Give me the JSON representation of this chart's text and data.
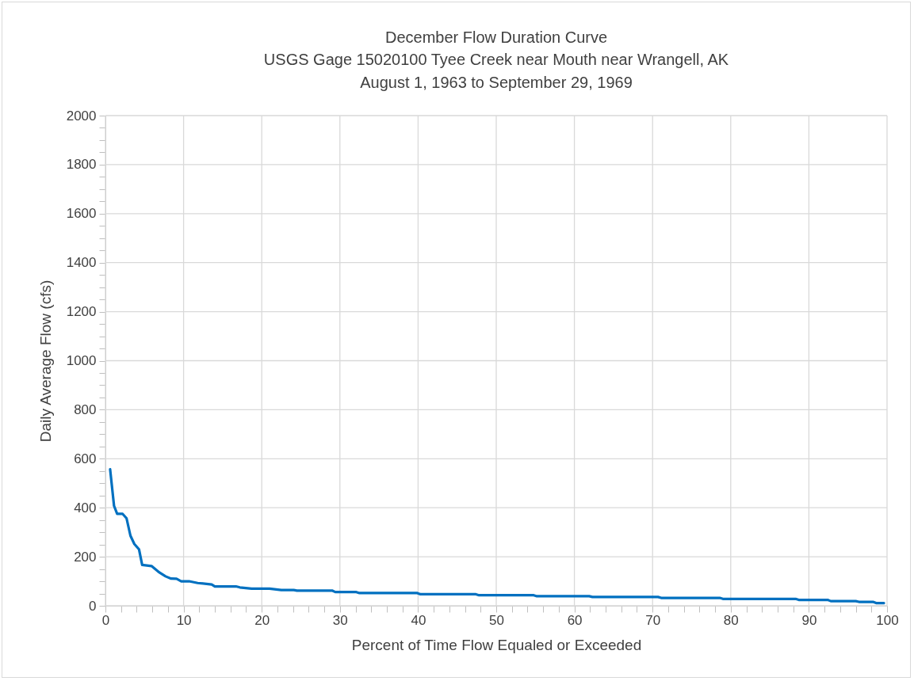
{
  "chart_data": {
    "type": "line",
    "title": "December Flow Duration Curve",
    "subtitle": "USGS Gage 15020100 Tyee Creek near Mouth near Wrangell, AK\nAugust 1, 1963 to September 29, 1969",
    "xlabel": "Percent of Time Flow Equaled or Exceeded",
    "ylabel": "Daily Average Flow (cfs)",
    "x": [
      0.6,
      1.1,
      1.5,
      2.2,
      2.7,
      3.2,
      3.7,
      4.3,
      4.7,
      5.9,
      6.9,
      7.7,
      8.4,
      9.1,
      9.7,
      10.7,
      11.8,
      13.6,
      14.0,
      16.7,
      17.2,
      18.7,
      21.0,
      22.5,
      24.1,
      24.5,
      29.0,
      29.4,
      32.1,
      32.5,
      39.9,
      40.3,
      47.4,
      47.8,
      54.8,
      55.2,
      61.9,
      62.3,
      70.7,
      71.1,
      78.6,
      79.0,
      88.3,
      88.7,
      92.4,
      92.8,
      96.0,
      96.4,
      98.2,
      98.6,
      99.6
    ],
    "series": [
      {
        "color": "#0070c0",
        "values": [
          557,
          408,
          375,
          375,
          357,
          286,
          252,
          230,
          167,
          162,
          136,
          120,
          111,
          110,
          100,
          100,
          93,
          87,
          79,
          79,
          75,
          70,
          70,
          64,
          64,
          62,
          62,
          56,
          56,
          52,
          52,
          47,
          47,
          43,
          43,
          39,
          39,
          36,
          36,
          32,
          32,
          28,
          28,
          24,
          24,
          19,
          19,
          16,
          16,
          11,
          11
        ]
      }
    ],
    "xlim": [
      0,
      100
    ],
    "ylim": [
      0,
      2000
    ],
    "xticks": [
      0,
      {
        "value": 2,
        "label": null
      },
      {
        "value": 4,
        "label": null
      },
      {
        "value": 6,
        "label": null
      },
      {
        "value": 8,
        "label": null
      },
      10,
      {
        "value": 12,
        "label": null
      },
      {
        "value": 14,
        "label": null
      },
      {
        "value": 16,
        "label": null
      },
      {
        "value": 18,
        "label": null
      },
      20,
      {
        "value": 22,
        "label": null
      },
      {
        "value": 24,
        "label": null
      },
      {
        "value": 26,
        "label": null
      },
      {
        "value": 28,
        "label": null
      },
      30,
      {
        "value": 32,
        "label": null
      },
      {
        "value": 34,
        "label": null
      },
      {
        "value": 36,
        "label": null
      },
      {
        "value": 38,
        "label": null
      },
      40,
      {
        "value": 42,
        "label": null
      },
      {
        "value": 44,
        "label": null
      },
      {
        "value": 46,
        "label": null
      },
      {
        "value": 48,
        "label": null
      },
      50,
      {
        "value": 52,
        "label": null
      },
      {
        "value": 54,
        "label": null
      },
      {
        "value": 56,
        "label": null
      },
      {
        "value": 58,
        "label": null
      },
      60,
      {
        "value": 62,
        "label": null
      },
      {
        "value": 64,
        "label": null
      },
      {
        "value": 66,
        "label": null
      },
      {
        "value": 68,
        "label": null
      },
      70,
      {
        "value": 72,
        "label": null
      },
      {
        "value": 74,
        "label": null
      },
      {
        "value": 76,
        "label": null
      },
      {
        "value": 78,
        "label": null
      },
      80,
      {
        "value": 82,
        "label": null
      },
      {
        "value": 84,
        "label": null
      },
      {
        "value": 86,
        "label": null
      },
      {
        "value": 88,
        "label": null
      },
      90,
      {
        "value": 92,
        "label": null
      },
      {
        "value": 94,
        "label": null
      },
      {
        "value": 96,
        "label": null
      },
      {
        "value": 98,
        "label": null
      },
      100
    ],
    "yticks": [
      0,
      {
        "value": 50,
        "label": null
      },
      {
        "value": 100,
        "label": null
      },
      {
        "value": 150,
        "label": null
      },
      200,
      {
        "value": 250,
        "label": null
      },
      {
        "value": 300,
        "label": null
      },
      {
        "value": 350,
        "label": null
      },
      400,
      {
        "value": 450,
        "label": null
      },
      {
        "value": 500,
        "label": null
      },
      {
        "value": 550,
        "label": null
      },
      600,
      {
        "value": 650,
        "label": null
      },
      {
        "value": 700,
        "label": null
      },
      {
        "value": 750,
        "label": null
      },
      800,
      {
        "value": 850,
        "label": null
      },
      {
        "value": 900,
        "label": null
      },
      {
        "value": 950,
        "label": null
      },
      1000,
      {
        "value": 1050,
        "label": null
      },
      {
        "value": 1100,
        "label": null
      },
      {
        "value": 1150,
        "label": null
      },
      1200,
      {
        "value": 1250,
        "label": null
      },
      {
        "value": 1300,
        "label": null
      },
      {
        "value": 1350,
        "label": null
      },
      1400,
      {
        "value": 1450,
        "label": null
      },
      {
        "value": 1500,
        "label": null
      },
      {
        "value": 1550,
        "label": null
      },
      1600,
      {
        "value": 1650,
        "label": null
      },
      {
        "value": 1700,
        "label": null
      },
      {
        "value": 1750,
        "label": null
      },
      1800,
      {
        "value": 1850,
        "label": null
      },
      {
        "value": 1900,
        "label": null
      },
      {
        "value": 1950,
        "label": null
      },
      2000
    ],
    "grid": true,
    "line_style": "solid",
    "marker": "none"
  }
}
